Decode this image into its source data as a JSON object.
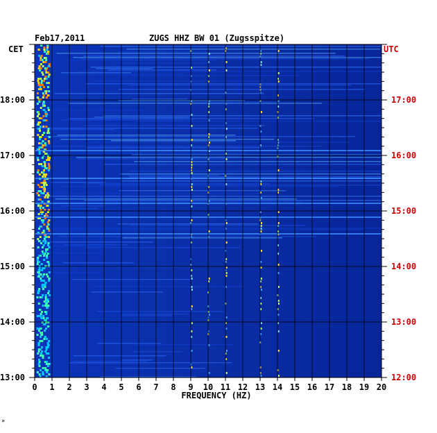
{
  "header": {
    "date": "Feb17,2011",
    "station": "ZUGS HHZ BW 01 (Zugsspitze)",
    "left_zone": "CET",
    "right_zone": "UTC",
    "corner_mark": "*"
  },
  "colors": {
    "background": "#0a2a9c",
    "grid": "#000000",
    "utc_text": "#cc0000",
    "axis_text": "#000000"
  },
  "chart_data": {
    "type": "heatmap",
    "title": "ZUGS HHZ BW 01 (Zugsspitze)",
    "xlabel": "FREQUENCY (HZ)",
    "ylabel": "",
    "xlim": [
      0,
      20
    ],
    "x_ticks": [
      "0",
      "1",
      "2",
      "3",
      "4",
      "5",
      "6",
      "7",
      "8",
      "9",
      "10",
      "11",
      "12",
      "13",
      "14",
      "15",
      "16",
      "17",
      "18",
      "19",
      "20"
    ],
    "y_ticks_left": [
      "13:00",
      "14:00",
      "15:00",
      "16:00",
      "17:00",
      "18:00"
    ],
    "y_ticks_right": [
      "12:00",
      "13:00",
      "14:00",
      "15:00",
      "16:00",
      "17:00"
    ],
    "ylim_cet_hours": [
      13.0,
      19.0
    ],
    "notes": "Energy concentrated below 1 Hz; broadband noise increases after ~15:30 CET; tonal lines near 9, 10, 13 and 14 Hz."
  }
}
